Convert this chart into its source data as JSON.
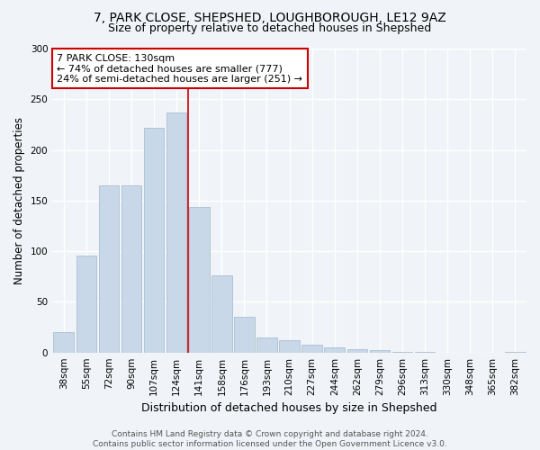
{
  "title": "7, PARK CLOSE, SHEPSHED, LOUGHBOROUGH, LE12 9AZ",
  "subtitle": "Size of property relative to detached houses in Shepshed",
  "xlabel": "Distribution of detached houses by size in Shepshed",
  "ylabel": "Number of detached properties",
  "categories": [
    "38sqm",
    "55sqm",
    "72sqm",
    "90sqm",
    "107sqm",
    "124sqm",
    "141sqm",
    "158sqm",
    "176sqm",
    "193sqm",
    "210sqm",
    "227sqm",
    "244sqm",
    "262sqm",
    "279sqm",
    "296sqm",
    "313sqm",
    "330sqm",
    "348sqm",
    "365sqm",
    "382sqm"
  ],
  "values": [
    20,
    96,
    165,
    165,
    222,
    237,
    144,
    76,
    35,
    15,
    12,
    8,
    5,
    3,
    2,
    1,
    1,
    0,
    0,
    0,
    1
  ],
  "bar_color": "#c8d8e8",
  "bar_edge_color": "#a0b8cc",
  "vline_x": 5.5,
  "vline_color": "#cc0000",
  "annotation_text": "7 PARK CLOSE: 130sqm\n← 74% of detached houses are smaller (777)\n24% of semi-detached houses are larger (251) →",
  "annotation_box_color": "#ffffff",
  "annotation_box_edge": "#cc0000",
  "ylim": [
    0,
    300
  ],
  "yticks": [
    0,
    50,
    100,
    150,
    200,
    250,
    300
  ],
  "bg_color": "#f0f4f8",
  "grid_color": "#ffffff",
  "footer": "Contains HM Land Registry data © Crown copyright and database right 2024.\nContains public sector information licensed under the Open Government Licence v3.0.",
  "title_fontsize": 10,
  "subtitle_fontsize": 9,
  "xlabel_fontsize": 9,
  "ylabel_fontsize": 8.5,
  "tick_fontsize": 7.5,
  "footer_fontsize": 6.5,
  "annotation_fontsize": 8
}
